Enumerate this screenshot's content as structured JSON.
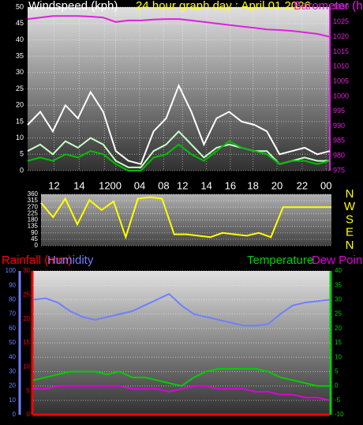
{
  "chart_data": [
    {
      "type": "line",
      "title": "24 hour graph day : April 01 2026",
      "ylabel": "Windspeed (kph)",
      "y2label": "Barometer (hPa)",
      "ycolor": "#ffffff",
      "y2color": "#e020e0",
      "grid": true,
      "x": [
        0,
        1,
        2,
        3,
        4,
        5,
        6,
        7,
        8,
        9,
        10,
        11,
        12,
        13,
        14,
        15,
        16,
        17,
        18,
        19,
        20,
        21,
        22,
        23,
        24
      ],
      "xlim": [
        0,
        24
      ],
      "xticks": [
        {
          "value": 2.1,
          "label": "12"
        },
        {
          "value": 4.1,
          "label": "14"
        },
        {
          "value": 6.1,
          "label": "12"
        },
        {
          "value": 7,
          "label": "00"
        },
        {
          "value": 8.9,
          "label": "04"
        },
        {
          "value": 10.8,
          "label": "08"
        },
        {
          "value": 12.3,
          "label": "12"
        },
        {
          "value": 14.2,
          "label": "14"
        },
        {
          "value": 16.1,
          "label": "16"
        },
        {
          "value": 17.9,
          "label": "18"
        },
        {
          "value": 19.8,
          "label": "20"
        },
        {
          "value": 21.8,
          "label": "22"
        },
        {
          "value": 23.7,
          "label": "00"
        }
      ],
      "ylim": [
        0,
        50
      ],
      "yticks": [
        0,
        5,
        10,
        15,
        20,
        25,
        30,
        35,
        40,
        45,
        50
      ],
      "y2lim": [
        975,
        1030
      ],
      "y2ticks": [
        975,
        980,
        985,
        990,
        995,
        1000,
        1005,
        1010,
        1015,
        1020,
        1025,
        1030
      ],
      "series": [
        {
          "color": "#ffffff",
          "values": [
            14,
            18,
            12,
            20,
            16,
            24,
            18,
            6,
            3,
            2,
            12,
            16,
            26,
            18,
            8,
            16,
            18,
            15,
            14,
            12,
            5,
            6,
            7,
            5,
            6
          ]
        },
        {
          "color": "#c8ffc8",
          "values": [
            6,
            8,
            5,
            9,
            7,
            10,
            8,
            3,
            1,
            1,
            6,
            8,
            12,
            8,
            4,
            7,
            8,
            7,
            6,
            6,
            2,
            3,
            4,
            3,
            3
          ]
        },
        {
          "color": "#00c000",
          "values": [
            3,
            4,
            3,
            5,
            4,
            6,
            5,
            2,
            0,
            0,
            4,
            5,
            8,
            5,
            3,
            6,
            9,
            7,
            6,
            5,
            2,
            3,
            3,
            2,
            3
          ]
        },
        {
          "color": "#e020e0",
          "axis": "y2",
          "values": [
            1026,
            1026.5,
            1027,
            1027,
            1027,
            1026.8,
            1026.5,
            1025,
            1025.5,
            1025.5,
            1025.8,
            1026,
            1026,
            1025.5,
            1025,
            1024.5,
            1024,
            1023.5,
            1023,
            1022.5,
            1022.3,
            1022,
            1021.5,
            1021,
            1020
          ]
        }
      ]
    },
    {
      "type": "line",
      "ycolor": "#ffffff",
      "y2color": "#ffff00",
      "grid": true,
      "x": [
        0,
        1,
        2,
        3,
        4,
        5,
        6,
        7,
        8,
        9,
        10,
        11,
        12,
        13,
        14,
        15,
        16,
        17,
        18,
        19,
        20,
        21,
        22,
        23,
        24
      ],
      "xlim": [
        0,
        24
      ],
      "ylim": [
        0,
        360
      ],
      "yticks": [
        0,
        45,
        90,
        135,
        180,
        225,
        270,
        315,
        360
      ],
      "y2lim": [
        0,
        360
      ],
      "y2ticks": [
        {
          "value": 360,
          "label": "N"
        },
        {
          "value": 270,
          "label": "W"
        },
        {
          "value": 180,
          "label": "S"
        },
        {
          "value": 90,
          "label": "E"
        },
        {
          "value": 0,
          "label": "N"
        }
      ],
      "series": [
        {
          "color": "#ffff00",
          "values": [
            300,
            200,
            330,
            150,
            320,
            250,
            310,
            60,
            330,
            340,
            330,
            80,
            80,
            70,
            60,
            90,
            80,
            70,
            90,
            60,
            270,
            270,
            270,
            270,
            270
          ]
        }
      ]
    },
    {
      "type": "line",
      "ycolor": "#6f7fff",
      "y2color": "#00d000",
      "y3color": "#ff0000",
      "grid": true,
      "x": [
        0,
        1,
        2,
        3,
        4,
        5,
        6,
        7,
        8,
        9,
        10,
        11,
        12,
        13,
        14,
        15,
        16,
        17,
        18,
        19,
        20,
        21,
        22,
        23,
        24
      ],
      "xlim": [
        0,
        24
      ],
      "ylim": [
        0,
        100
      ],
      "yticks": [
        0,
        10,
        20,
        30,
        40,
        50,
        60,
        70,
        80,
        90,
        100
      ],
      "y3lim": [
        0,
        30
      ],
      "y3ticks": [
        0,
        5,
        10,
        15,
        20,
        25,
        30
      ],
      "y2lim": [
        -10,
        40
      ],
      "y2ticks": [
        -10,
        -5,
        0,
        5,
        10,
        15,
        20,
        25,
        30,
        35,
        40
      ],
      "series": [
        {
          "name": "Rainfall (mm)",
          "color": "#ff0000",
          "axis": "y3",
          "values": [
            0,
            0,
            0,
            0,
            0,
            0,
            0,
            0,
            0,
            0,
            0,
            0,
            0,
            0,
            0,
            0,
            0,
            0,
            0,
            0,
            0,
            0,
            0,
            0,
            0
          ]
        },
        {
          "name": "Humidity",
          "color": "#6f7fff",
          "values": [
            80,
            81,
            78,
            72,
            68,
            66,
            68,
            70,
            72,
            76,
            80,
            84,
            76,
            70,
            68,
            66,
            64,
            62,
            62,
            63,
            70,
            76,
            78,
            79,
            80
          ]
        },
        {
          "name": "Temperature",
          "color": "#00d000",
          "axis": "y2",
          "values": [
            2,
            3,
            4,
            5,
            5,
            5,
            4,
            5,
            3,
            3,
            2,
            1,
            0,
            3,
            5,
            6,
            6,
            6,
            6,
            5,
            3,
            2,
            1,
            0,
            0
          ]
        },
        {
          "name": "Dew Point",
          "color": "#e000e0",
          "axis": "y2",
          "values": [
            -1,
            -1,
            0,
            0,
            0,
            0,
            0,
            0,
            -1,
            -1,
            -1,
            -2,
            -1,
            0,
            0,
            -1,
            -1,
            -1,
            -2,
            -2,
            -3,
            -3,
            -4,
            -4,
            -5
          ]
        }
      ]
    }
  ]
}
